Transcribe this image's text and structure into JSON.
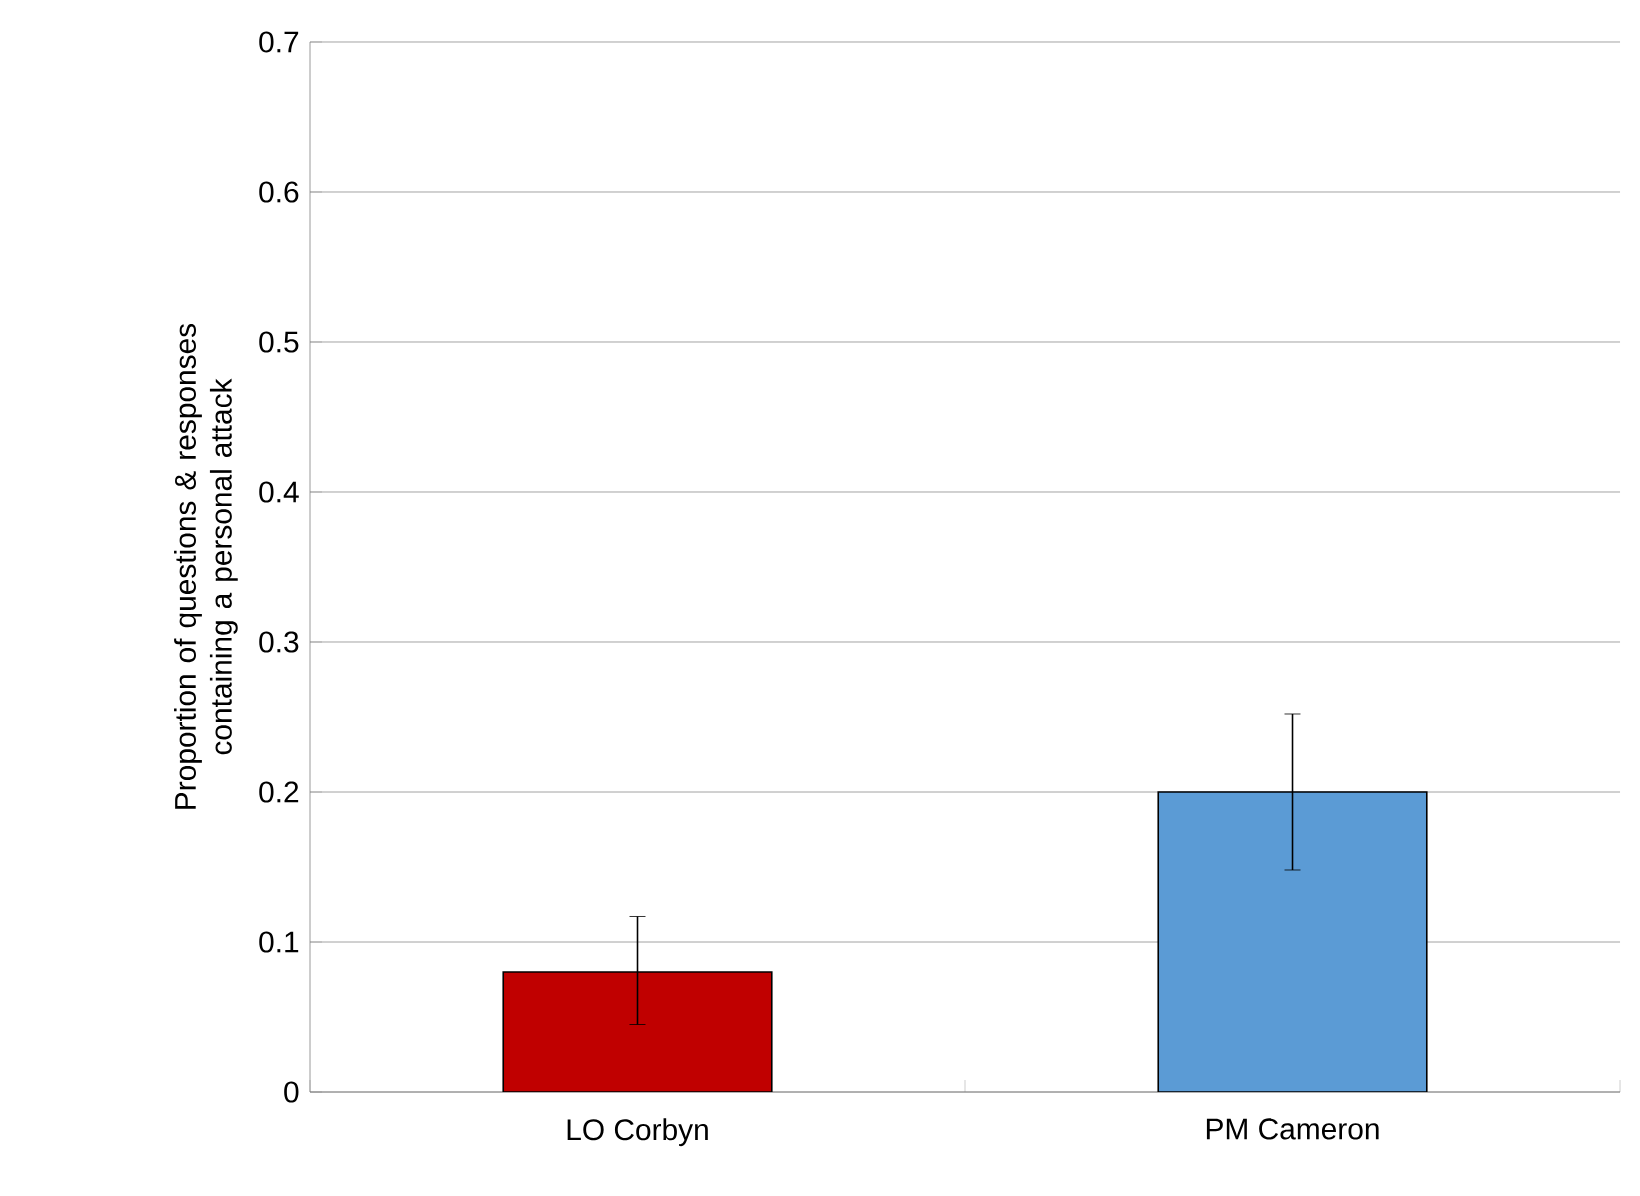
{
  "chart_data": {
    "type": "bar",
    "ylabel": "Proportion of questions & responses containing a personal attack",
    "categories": [
      "LO Corbyn",
      "PM Cameron"
    ],
    "values": [
      0.08,
      0.2
    ],
    "colors": [
      "#c00000",
      "#5b9bd5"
    ],
    "errors": [
      [
        0.045,
        0.117
      ],
      [
        0.148,
        0.252
      ]
    ],
    "ylim": [
      0,
      0.7
    ],
    "yticks": [
      0,
      0.1,
      0.2,
      0.3,
      0.4,
      0.5,
      0.6,
      0.7
    ],
    "grid": "y"
  }
}
